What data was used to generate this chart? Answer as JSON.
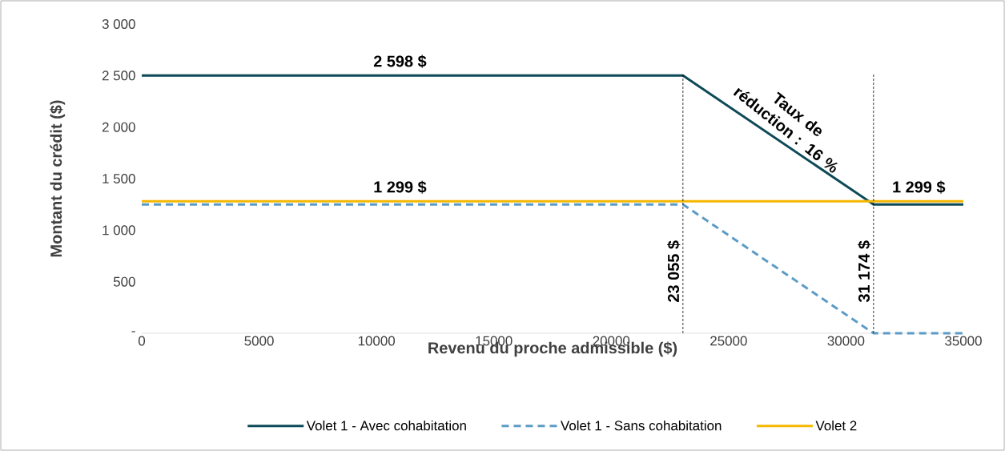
{
  "chart_data": {
    "type": "line",
    "xlabel": "Revenu du proche admissible ($)",
    "ylabel": "Montant du crédit ($)",
    "xlim": [
      0,
      35000
    ],
    "ylim": [
      0,
      3000
    ],
    "xticks": [
      0,
      5000,
      10000,
      15000,
      20000,
      25000,
      30000,
      35000
    ],
    "yticks": [
      {
        "value": 0,
        "label": "-"
      },
      {
        "value": 500,
        "label": "500"
      },
      {
        "value": 1000,
        "label": "1 000"
      },
      {
        "value": 1500,
        "label": "1 500"
      },
      {
        "value": 2000,
        "label": "2 000"
      },
      {
        "value": 2500,
        "label": "2 500"
      },
      {
        "value": 3000,
        "label": "3 000"
      }
    ],
    "series": [
      {
        "name": "Volet 1 - Avec cohabitation",
        "color": "#0d4a57",
        "line_style": "solid",
        "x": [
          0,
          23055,
          31174,
          35000
        ],
        "values": [
          2500,
          2500,
          1250,
          1250
        ]
      },
      {
        "name": "Volet 1 - Sans cohabitation",
        "color": "#5b9bc5",
        "line_style": "dashed",
        "x": [
          0,
          23055,
          31174,
          35000
        ],
        "values": [
          1250,
          1250,
          0,
          0
        ]
      },
      {
        "name": "Volet 2",
        "color": "#f5b800",
        "line_style": "solid",
        "x": [
          0,
          35000
        ],
        "values": [
          1280,
          1280
        ]
      }
    ],
    "ref_lines": [
      {
        "axis": "x",
        "value": 23055,
        "label": "23 055 $",
        "color": "#000000",
        "line_style": "dashed"
      },
      {
        "axis": "x",
        "value": 31174,
        "label": "31 174 $",
        "color": "#000000",
        "line_style": "dashed"
      }
    ],
    "annotations": [
      {
        "text": "2 598 $",
        "x": 11000,
        "y": 2500
      },
      {
        "text": "1 299 $",
        "x": 11000,
        "y": 1280
      },
      {
        "text": "1 299 $",
        "x": 33100,
        "y": 1280
      },
      {
        "text": "Taux de réduction : 16 %",
        "x": 27100,
        "y": 1875
      }
    ],
    "legend": "bottom",
    "grid": false
  }
}
